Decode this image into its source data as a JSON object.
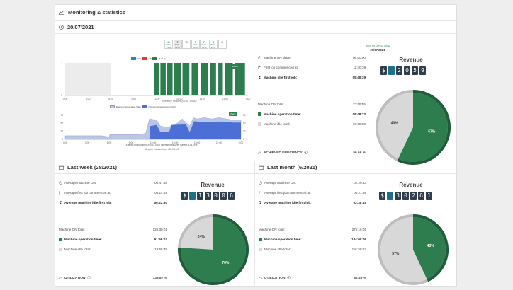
{
  "page": {
    "title": "Monitoring & statistics"
  },
  "today": {
    "date": "20/07/2021",
    "date_buttons": [
      {
        "day": "M",
        "range": "00:00 - 24:00",
        "active": false
      },
      {
        "day": "T",
        "range": "00:00 - 24:00",
        "active": true
      },
      {
        "day": "W",
        "range": "",
        "active": false
      },
      {
        "day": "T",
        "range": "00:00 - 24:00",
        "active": false
      },
      {
        "day": "F",
        "range": "00:00 - 24:00",
        "active": false
      },
      {
        "day": "S",
        "range": "00:00 - 24:00",
        "active": false
      },
      {
        "day": "S",
        "range": "",
        "active": false
      }
    ],
    "back_label": "BACK TO ACTUAL DATE",
    "back_date": "20/07/2021",
    "legend": {
      "on": "ON",
      "off": "Off",
      "activity": "Activity"
    },
    "zoom_label": "Zoom",
    "efficiency_caption": "Efficiency: 56.66 % (00:00 - 05:30)",
    "energy_caption_1": "Energy consumption: 840.51 kWh, Highest measured current: 134.29 A",
    "energy_caption_2": "Nitrogen consumption: 485.54 m3",
    "legend2": {
      "energy": "Energy consumption (kW)",
      "nitrogen": "Nitrogen consumption (m3/h)"
    },
    "stats": {
      "machine_on_since_label": "Machine ON since:",
      "machine_on_since": "00:00:00",
      "first_job_label": "First job commenced at:",
      "first_job": "11:40:39",
      "idle_first_job_label": "Machine idle first job:",
      "idle_first_job": "05:40:39",
      "on_total_label": "Machine ON total:",
      "on_total": "23:59:55",
      "operation_time_label": "Machine operation time:",
      "operation_time": "09:48:22",
      "idle_total_label": "Machine idle total:",
      "idle_total": "07:38:00",
      "summary_label": "ACHIEVED EFFICIENCY",
      "summary_value": "56.66 %"
    },
    "revenue_title": "Revenue",
    "revenue_digits": [
      "$",
      "",
      "2",
      "0",
      "5",
      "9"
    ],
    "pie": {
      "green_pct": 57,
      "grey_pct": 43,
      "green_label": "57%",
      "grey_label": "43%"
    }
  },
  "last_week": {
    "title": "Last week (28/2021)",
    "stats": {
      "avg_on_label": "Average machine ON:",
      "avg_on": "00:47:48",
      "avg_first_job_label": "Average first job commenced at:",
      "avg_first_job": "06:14:49",
      "avg_idle_label": "Average machine idle first job:",
      "avg_idle": "00:22:30",
      "on_total_label": "Machine ON total:",
      "on_total": "126:30:01",
      "operation_time_label": "Machine operation time:",
      "operation_time": "61:56:07",
      "idle_total_label": "Machine idle total:",
      "idle_total": "19:55:49",
      "summary_label": "UTILIZATION",
      "summary_value": "135.87 %"
    },
    "revenue_title": "Revenue",
    "revenue_digits": [
      "$",
      "",
      "1",
      "3",
      "0",
      "0",
      "6"
    ],
    "pie": {
      "green_pct": 76,
      "grey_pct": 24,
      "green_label": "76%",
      "grey_label": "24%"
    }
  },
  "last_month": {
    "title": "Last month (6/2021)",
    "stats": {
      "avg_on_label": "Average machine ON:",
      "avg_on": "02:20:33",
      "avg_first_job_label": "Average first job commenced at:",
      "avg_first_job": "06:21:59",
      "avg_idle_label": "Average machine idle first job:",
      "avg_idle": "02:38:15",
      "on_total_label": "Machine ON total:",
      "on_total": "275:16:05",
      "operation_time_label": "Machine operation time:",
      "operation_time": "144:00:09",
      "idle_total_label": "Machine idle total:",
      "idle_total": "191:58:27",
      "summary_label": "UTILIZATION",
      "summary_value": "62.89 %"
    },
    "revenue_title": "Revenue",
    "revenue_digits": [
      "$",
      "",
      "3",
      "0",
      "2",
      "6",
      "1"
    ],
    "pie": {
      "green_pct": 43,
      "grey_pct": 57,
      "green_label": "43%",
      "grey_label": "57%"
    }
  },
  "charts": {
    "activity_x_ticks": [
      "0:00",
      "3:00",
      "6:00",
      "9:00",
      "12:00",
      "15:00",
      "18:00",
      "21:00",
      "0:00"
    ],
    "activity_y_ticks": [
      "1",
      "0"
    ],
    "energy_y_left": [
      "75",
      "50",
      "25",
      "0"
    ],
    "energy_y_right": [
      "90",
      "60",
      "30",
      "0"
    ],
    "colors": {
      "green": "#2e7d4f",
      "blue": "#1e88c8",
      "red": "#e53935",
      "grey": "#d8d8d8",
      "dark": "#1f5c3a",
      "energy": "#b9c6e4",
      "nitrogen": "#4c6fd6"
    }
  }
}
